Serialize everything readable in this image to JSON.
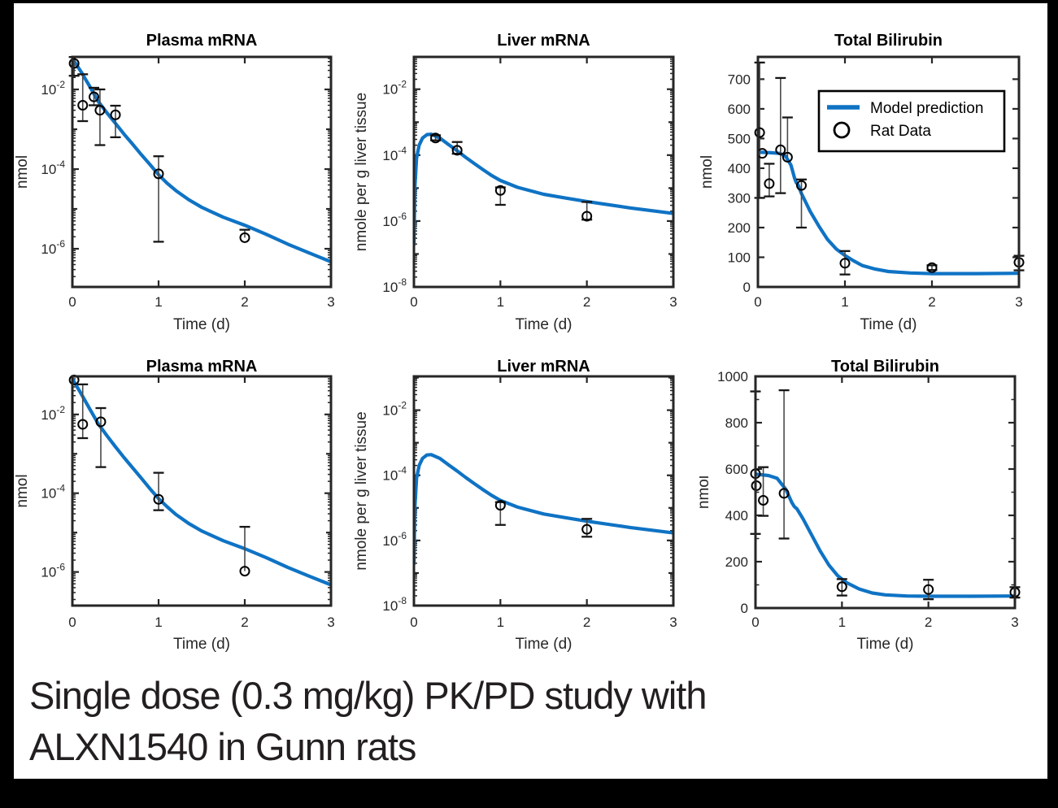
{
  "caption": {
    "line1": "Single dose (0.3 mg/kg) PK/PD study with",
    "line2": "ALXN1540 in Gunn rats"
  },
  "legend": {
    "model_label": "Model prediction",
    "data_label": "Rat Data"
  },
  "colors": {
    "model_line": "#0f73c4",
    "marker": "#000000",
    "axis": "#262626",
    "title": "#000000",
    "errorbar_line": "#4a4a4a",
    "errorbar_cap": "#151515",
    "background": "#000000",
    "panel": "#ffffff",
    "caption_text": "#231f20"
  },
  "chart_data": [
    {
      "id": "plasma-mrna-top",
      "type": "line+scatter",
      "title": "Plasma mRNA",
      "xlabel": "Time (d)",
      "ylabel": "nmol",
      "xlim": [
        0,
        3
      ],
      "xticks": [
        0,
        1,
        2,
        3
      ],
      "yscale": "log",
      "ylim": [
        1.1e-07,
        0.0655
      ],
      "ytick_exponents": [
        -2,
        -4,
        -6
      ],
      "legend": false,
      "series_name": "Model prediction",
      "model": [
        [
          0,
          0.06
        ],
        [
          0.1,
          0.028
        ],
        [
          0.2,
          0.012
        ],
        [
          0.3,
          0.005
        ],
        [
          0.4,
          0.0026
        ],
        [
          0.5,
          0.0014
        ],
        [
          0.6,
          0.00075
        ],
        [
          0.7,
          0.00042
        ],
        [
          0.8,
          0.00023
        ],
        [
          0.9,
          0.00013
        ],
        [
          1.0,
          7.2e-05
        ],
        [
          1.1,
          4.4e-05
        ],
        [
          1.2,
          2.9e-05
        ],
        [
          1.35,
          1.7e-05
        ],
        [
          1.5,
          1.1e-05
        ],
        [
          1.75,
          6.2e-06
        ],
        [
          2.0,
          3.9e-06
        ],
        [
          2.25,
          2.3e-06
        ],
        [
          2.5,
          1.3e-06
        ],
        [
          2.75,
          7.8e-07
        ],
        [
          3.0,
          4.7e-07
        ]
      ],
      "rat_data": [
        {
          "t": 0.02,
          "y": 0.045,
          "lo": 0.022,
          "hi": 0.065
        },
        {
          "t": 0.12,
          "y": 0.004,
          "lo": 0.0016,
          "hi": 0.024
        },
        {
          "t": 0.25,
          "y": 0.0065,
          "lo": 0.004,
          "hi": 0.011
        },
        {
          "t": 0.32,
          "y": 0.003,
          "lo": 0.0004,
          "hi": 0.01
        },
        {
          "t": 0.5,
          "y": 0.0023,
          "lo": 0.00063,
          "hi": 0.0039
        },
        {
          "t": 1,
          "y": 7.6e-05,
          "lo": 1.5e-06,
          "hi": 0.00021
        },
        {
          "t": 2,
          "y": 1.9e-06,
          "lo": null,
          "hi": 3e-06
        }
      ]
    },
    {
      "id": "liver-mrna-top",
      "type": "line+scatter",
      "title": "Liver mRNA",
      "xlabel": "Time (d)",
      "ylabel": "nmole per g liver tissue",
      "xlim": [
        0,
        3
      ],
      "xticks": [
        0,
        1,
        2,
        3
      ],
      "yscale": "log",
      "ylim": [
        1e-08,
        0.0955
      ],
      "ytick_exponents": [
        -2,
        -4,
        -6,
        -8
      ],
      "legend": false,
      "series_name": "Model prediction",
      "model": [
        [
          0,
          1.9e-07
        ],
        [
          0.01,
          1e-05
        ],
        [
          0.03,
          8e-05
        ],
        [
          0.06,
          0.0002
        ],
        [
          0.1,
          0.00033
        ],
        [
          0.15,
          0.00042
        ],
        [
          0.2,
          0.00043
        ],
        [
          0.3,
          0.00033
        ],
        [
          0.4,
          0.00021
        ],
        [
          0.5,
          0.000135
        ],
        [
          0.6,
          8.5e-05
        ],
        [
          0.7,
          5.5e-05
        ],
        [
          0.8,
          3.6e-05
        ],
        [
          0.9,
          2.4e-05
        ],
        [
          1.0,
          1.7e-05
        ],
        [
          1.2,
          1.05e-05
        ],
        [
          1.5,
          6.5e-06
        ],
        [
          1.75,
          5e-06
        ],
        [
          2.0,
          3.9e-06
        ],
        [
          2.5,
          2.5e-06
        ],
        [
          3.0,
          1.7e-06
        ]
      ],
      "rat_data": [
        {
          "t": 0.25,
          "y": 0.00033,
          "lo": 0.00028,
          "hi": 0.0004
        },
        {
          "t": 0.5,
          "y": 0.00014,
          "lo": 0.00011,
          "hi": 0.00025
        },
        {
          "t": 1,
          "y": 8.5e-06,
          "lo": 3.1e-06,
          "hi": 1.05e-05
        },
        {
          "t": 2,
          "y": 1.4e-06,
          "lo": 1.1e-06,
          "hi": 3.8e-06
        }
      ]
    },
    {
      "id": "total-bilirubin-top",
      "type": "line+scatter",
      "title": "Total Bilirubin",
      "xlabel": "Time (d)",
      "ylabel": "nmol",
      "xlim": [
        0,
        3
      ],
      "xticks": [
        0,
        1,
        2,
        3
      ],
      "yscale": "linear",
      "ylim": [
        0,
        775
      ],
      "yticks": [
        0,
        100,
        200,
        300,
        400,
        500,
        600,
        700
      ],
      "yminor": 0,
      "legend": true,
      "series_name": "Model prediction",
      "model": [
        [
          0,
          454
        ],
        [
          0.15,
          452
        ],
        [
          0.25,
          450
        ],
        [
          0.32,
          440
        ],
        [
          0.38,
          410
        ],
        [
          0.42,
          368
        ],
        [
          0.44,
          352
        ],
        [
          0.46,
          345
        ],
        [
          0.5,
          315
        ],
        [
          0.6,
          255
        ],
        [
          0.7,
          205
        ],
        [
          0.8,
          160
        ],
        [
          0.9,
          128
        ],
        [
          1.0,
          106
        ],
        [
          1.1,
          88
        ],
        [
          1.2,
          72
        ],
        [
          1.35,
          60
        ],
        [
          1.5,
          52
        ],
        [
          1.75,
          47
        ],
        [
          2.0,
          45
        ],
        [
          2.5,
          45
        ],
        [
          3.0,
          46
        ]
      ],
      "rat_data": [
        {
          "t": 0.02,
          "y": 520,
          "lo": 300,
          "hi": 756
        },
        {
          "t": 0.05,
          "y": 450,
          "lo": null,
          "hi": null
        },
        {
          "t": 0.13,
          "y": 348,
          "lo": 305,
          "hi": 415
        },
        {
          "t": 0.26,
          "y": 462,
          "lo": 316,
          "hi": 704
        },
        {
          "t": 0.34,
          "y": 437,
          "lo": null,
          "hi": 571
        },
        {
          "t": 0.5,
          "y": 342,
          "lo": 200,
          "hi": 362
        },
        {
          "t": 1,
          "y": 80,
          "lo": 42,
          "hi": 121
        },
        {
          "t": 2,
          "y": 65,
          "lo": 57,
          "hi": 73
        },
        {
          "t": 3,
          "y": 83,
          "lo": 56,
          "hi": 105
        }
      ]
    },
    {
      "id": "plasma-mrna-bottom",
      "type": "line+scatter",
      "title": "Plasma mRNA",
      "xlabel": "Time (d)",
      "ylabel": "nmol",
      "xlim": [
        0,
        3
      ],
      "xticks": [
        0,
        1,
        2,
        3
      ],
      "yscale": "log",
      "ylim": [
        1.4e-07,
        0.0926
      ],
      "ytick_exponents": [
        -2,
        -4,
        -6
      ],
      "legend": false,
      "series_name": "Model prediction",
      "model": [
        [
          0,
          0.08
        ],
        [
          0.1,
          0.034
        ],
        [
          0.2,
          0.014
        ],
        [
          0.3,
          0.0058
        ],
        [
          0.4,
          0.0029
        ],
        [
          0.5,
          0.0015
        ],
        [
          0.6,
          0.0008
        ],
        [
          0.7,
          0.00044
        ],
        [
          0.8,
          0.00024
        ],
        [
          0.9,
          0.00013
        ],
        [
          1.0,
          7.3e-05
        ],
        [
          1.1,
          4.5e-05
        ],
        [
          1.2,
          2.9e-05
        ],
        [
          1.35,
          1.7e-05
        ],
        [
          1.5,
          1.1e-05
        ],
        [
          1.75,
          6.2e-06
        ],
        [
          2.0,
          3.9e-06
        ],
        [
          2.25,
          2.3e-06
        ],
        [
          2.5,
          1.3e-06
        ],
        [
          2.75,
          7.8e-07
        ],
        [
          3.0,
          4.7e-07
        ]
      ],
      "rat_data": [
        {
          "t": 0.02,
          "y": 0.075,
          "lo": null,
          "hi": null
        },
        {
          "t": 0.12,
          "y": 0.0056,
          "lo": 0.0025,
          "hi": 0.058
        },
        {
          "t": 0.33,
          "y": 0.0065,
          "lo": 0.00046,
          "hi": 0.0145
        },
        {
          "t": 1,
          "y": 7e-05,
          "lo": 3.7e-05,
          "hi": 0.00033
        },
        {
          "t": 2,
          "y": 1.05e-06,
          "lo": null,
          "hi": 1.4e-05
        }
      ]
    },
    {
      "id": "liver-mrna-bottom",
      "type": "line+scatter",
      "title": "Liver mRNA",
      "xlabel": "Time (d)",
      "ylabel": "nmole per g liver tissue",
      "xlim": [
        0,
        3
      ],
      "xticks": [
        0,
        1,
        2,
        3
      ],
      "yscale": "log",
      "ylim": [
        1e-08,
        0.109
      ],
      "ytick_exponents": [
        -2,
        -4,
        -6,
        -8
      ],
      "legend": false,
      "series_name": "Model prediction",
      "model": [
        [
          0,
          1.9e-07
        ],
        [
          0.01,
          1e-05
        ],
        [
          0.03,
          8e-05
        ],
        [
          0.06,
          0.0002
        ],
        [
          0.1,
          0.00033
        ],
        [
          0.15,
          0.00042
        ],
        [
          0.2,
          0.00043
        ],
        [
          0.3,
          0.00033
        ],
        [
          0.4,
          0.00021
        ],
        [
          0.5,
          0.000135
        ],
        [
          0.6,
          8.5e-05
        ],
        [
          0.7,
          5.5e-05
        ],
        [
          0.8,
          3.6e-05
        ],
        [
          0.9,
          2.4e-05
        ],
        [
          1.0,
          1.7e-05
        ],
        [
          1.2,
          1.05e-05
        ],
        [
          1.5,
          6.5e-06
        ],
        [
          1.75,
          5e-06
        ],
        [
          2.0,
          3.9e-06
        ],
        [
          2.5,
          2.5e-06
        ],
        [
          3.0,
          1.7e-06
        ]
      ],
      "rat_data": [
        {
          "t": 1,
          "y": 1.2e-05,
          "lo": 3e-06,
          "hi": 1.5e-05
        },
        {
          "t": 2,
          "y": 2.2e-06,
          "lo": 1.3e-06,
          "hi": 4.6e-06
        }
      ]
    },
    {
      "id": "total-bilirubin-bottom",
      "type": "line+scatter",
      "title": "Total Bilirubin",
      "xlabel": "Time (d)",
      "ylabel": "nmol",
      "xlim": [
        0,
        3
      ],
      "xticks": [
        0,
        1,
        2,
        3
      ],
      "yscale": "linear",
      "ylim": [
        0,
        1000
      ],
      "yticks": [
        0,
        200,
        400,
        600,
        800,
        1000
      ],
      "yminor": 100,
      "legend": false,
      "series_name": "Model prediction",
      "model": [
        [
          0,
          578
        ],
        [
          0.15,
          572
        ],
        [
          0.25,
          560
        ],
        [
          0.35,
          513
        ],
        [
          0.42,
          455
        ],
        [
          0.45,
          438
        ],
        [
          0.48,
          428
        ],
        [
          0.55,
          385
        ],
        [
          0.65,
          315
        ],
        [
          0.75,
          245
        ],
        [
          0.85,
          185
        ],
        [
          0.95,
          140
        ],
        [
          1.05,
          110
        ],
        [
          1.2,
          82
        ],
        [
          1.35,
          65
        ],
        [
          1.5,
          57
        ],
        [
          1.75,
          52
        ],
        [
          2.0,
          51
        ],
        [
          2.5,
          51
        ],
        [
          3.0,
          52
        ]
      ],
      "rat_data": [
        {
          "t": 0,
          "y": 580,
          "lo": 320,
          "hi": 935
        },
        {
          "t": 0.01,
          "y": 528,
          "lo": null,
          "hi": null
        },
        {
          "t": 0.09,
          "y": 465,
          "lo": 398,
          "hi": 608
        },
        {
          "t": 0.33,
          "y": 495,
          "lo": 300,
          "hi": 940
        },
        {
          "t": 1,
          "y": 92,
          "lo": 54,
          "hi": 125
        },
        {
          "t": 2,
          "y": 80,
          "lo": 38,
          "hi": 122
        },
        {
          "t": 3,
          "y": 68,
          "lo": 45,
          "hi": 90
        }
      ]
    }
  ]
}
